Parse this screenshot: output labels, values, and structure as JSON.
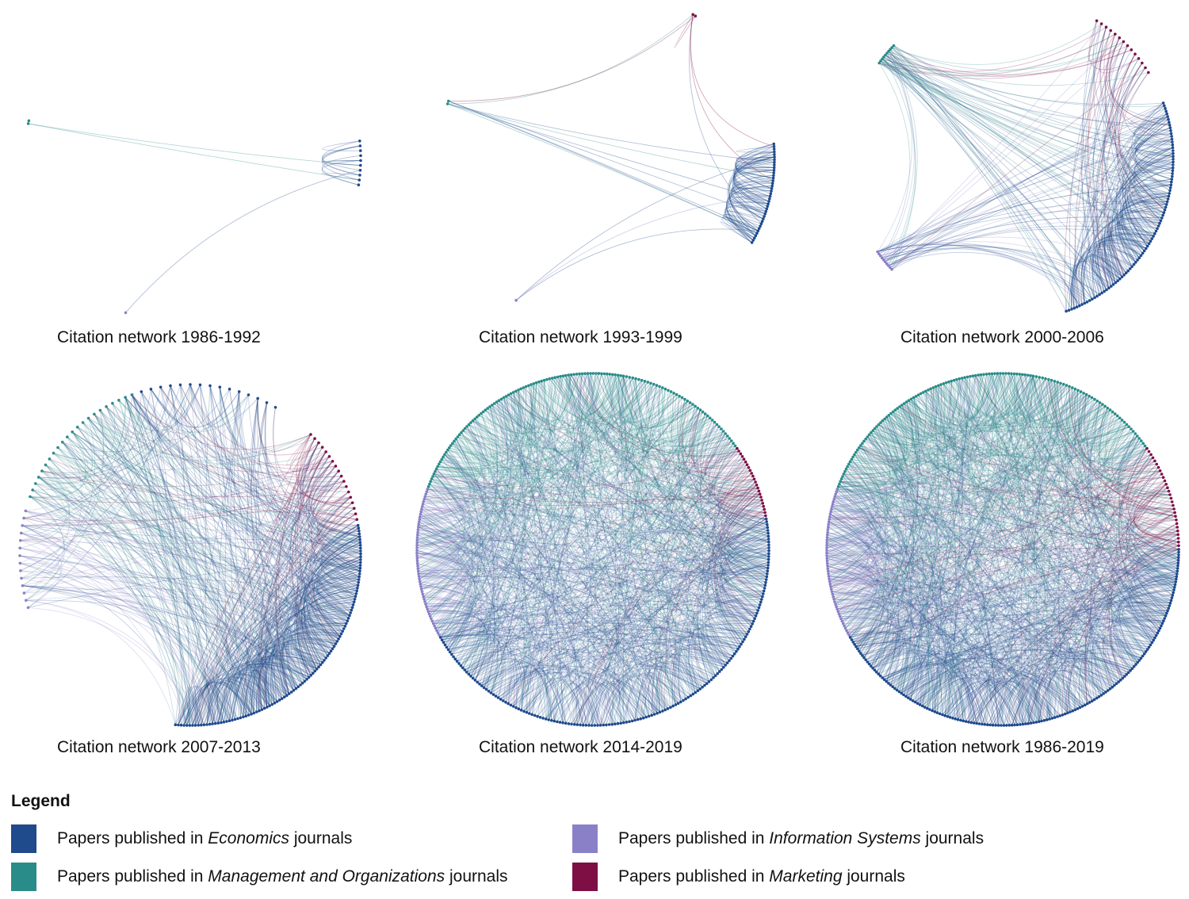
{
  "colors": {
    "economics": "#1f4a8c",
    "management": "#2a8c88",
    "information_systems": "#8a80c8",
    "marketing": "#7d0f45"
  },
  "panels": [
    {
      "caption": "Citation network 1986-1992"
    },
    {
      "caption": "Citation network 1993-1999"
    },
    {
      "caption": "Citation network 2000-2006"
    },
    {
      "caption": "Citation network 2007-2013"
    },
    {
      "caption": "Citation network 2014-2019"
    },
    {
      "caption": "Citation network 1986-2019"
    }
  ],
  "legend": {
    "title": "Legend",
    "items": [
      {
        "key": "economics",
        "prefix": "Papers published in ",
        "field": "Economics",
        "suffix": " journals"
      },
      {
        "key": "information_systems",
        "prefix": "Papers published in ",
        "field": "Information Systems",
        "suffix": " journals"
      },
      {
        "key": "management",
        "prefix": "Papers published in ",
        "field": "Management and Organizations",
        "suffix": " journals"
      },
      {
        "key": "marketing",
        "prefix": "Papers published in ",
        "field": "Marketing",
        "suffix": " journals"
      }
    ]
  }
}
